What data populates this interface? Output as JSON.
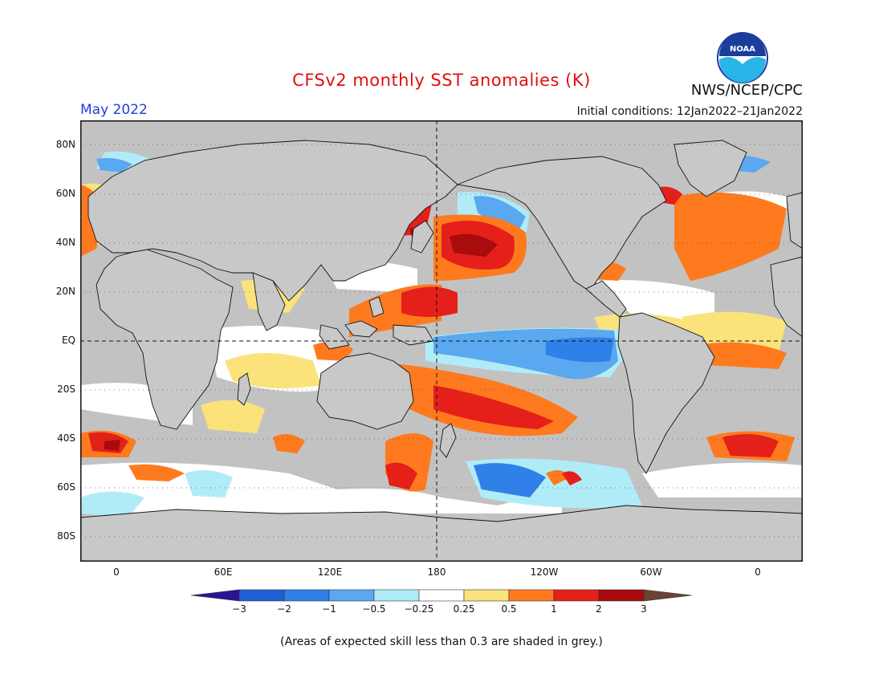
{
  "header": {
    "title": "CFSv2 monthly SST anomalies (K)",
    "agency": "NWS/NCEP/CPC",
    "month": "May 2022",
    "initial_conditions": "Initial conditions: 12Jan2022–21Jan2022",
    "logo_text": "NOAA"
  },
  "map": {
    "projection": "equirectangular",
    "lon_range": [
      -20,
      380
    ],
    "lat_range": [
      -90,
      90
    ],
    "lat_labels": [
      "80N",
      "60N",
      "40N",
      "20N",
      "EQ",
      "20S",
      "40S",
      "60S",
      "80S"
    ],
    "lat_values": [
      80,
      60,
      40,
      20,
      0,
      -20,
      -40,
      -60,
      -80
    ],
    "lon_labels": [
      "0",
      "60E",
      "120E",
      "180",
      "120W",
      "60W",
      "0"
    ],
    "lon_values": [
      0,
      60,
      120,
      180,
      240,
      300,
      360
    ],
    "land_color": "#c8c8c8",
    "grey_skill_color": "#c2c2c2",
    "dashed_lines": [
      "equator",
      "dateline"
    ]
  },
  "colorbar": {
    "labels": [
      "−3",
      "−2",
      "−1",
      "−0.5",
      "−0.25",
      "0.25",
      "0.5",
      "1",
      "2",
      "3"
    ],
    "colors": [
      "#2b1399",
      "#1f5fd4",
      "#2f80e8",
      "#5aa8f0",
      "#b0ecf8",
      "#ffffff",
      "#fbe27a",
      "#ff7a1e",
      "#e51f1a",
      "#a80c0c",
      "#6b4433"
    ]
  },
  "footnote": "(Areas of expected skill less than 0.3 are shaded in grey.)"
}
